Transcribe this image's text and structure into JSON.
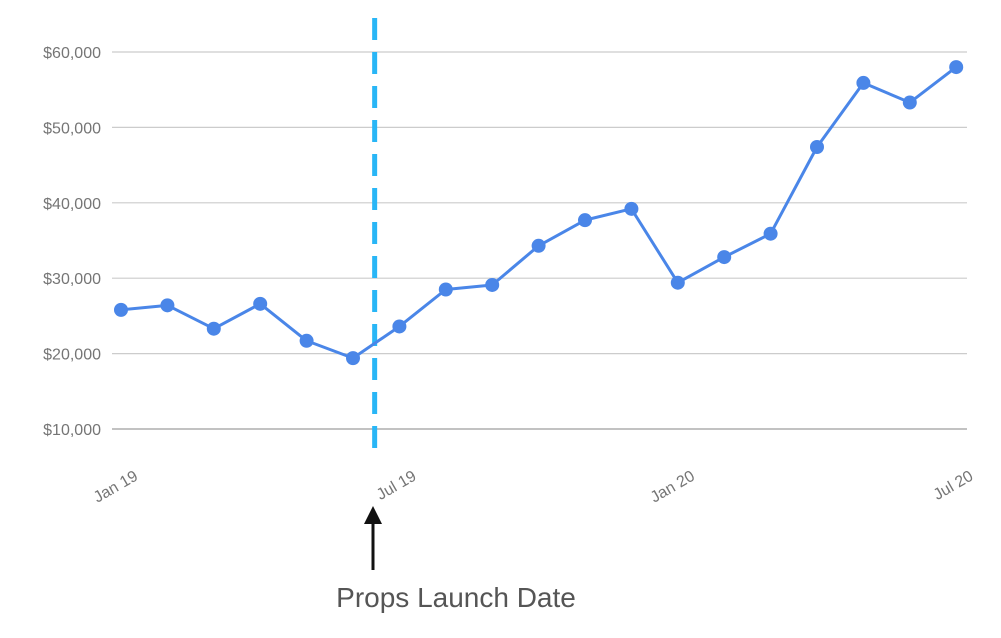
{
  "chart_data": {
    "type": "line",
    "title": "",
    "xlabel": "",
    "ylabel": "",
    "ylim": [
      10000,
      60000
    ],
    "y_ticks": [
      {
        "value": 10000,
        "label": "$10,000"
      },
      {
        "value": 20000,
        "label": "$20,000"
      },
      {
        "value": 30000,
        "label": "$30,000"
      },
      {
        "value": 40000,
        "label": "$40,000"
      },
      {
        "value": 50000,
        "label": "$50,000"
      },
      {
        "value": 60000,
        "label": "$60,000"
      }
    ],
    "x_ticks": [
      {
        "index": 0,
        "label": "Jan 19"
      },
      {
        "index": 6,
        "label": "Jul 19"
      },
      {
        "index": 12,
        "label": "Jan 20"
      },
      {
        "index": 18,
        "label": "Jul 20"
      }
    ],
    "grid": true,
    "series": [
      {
        "color": "#4a86e8",
        "points": [
          {
            "x": "2019-01",
            "y": 25800
          },
          {
            "x": "2019-02",
            "y": 26400
          },
          {
            "x": "2019-03",
            "y": 23300
          },
          {
            "x": "2019-04",
            "y": 26600
          },
          {
            "x": "2019-05",
            "y": 21700
          },
          {
            "x": "2019-06",
            "y": 19400
          },
          {
            "x": "2019-07",
            "y": 23600
          },
          {
            "x": "2019-08",
            "y": 28500
          },
          {
            "x": "2019-09",
            "y": 29100
          },
          {
            "x": "2019-10",
            "y": 34300
          },
          {
            "x": "2019-11",
            "y": 37700
          },
          {
            "x": "2019-12",
            "y": 39200
          },
          {
            "x": "2020-01",
            "y": 29400
          },
          {
            "x": "2020-02",
            "y": 32800
          },
          {
            "x": "2020-03",
            "y": 35900
          },
          {
            "x": "2020-04",
            "y": 47400
          },
          {
            "x": "2020-05",
            "y": 55900
          },
          {
            "x": "2020-06",
            "y": 53300
          },
          {
            "x": "2020-07",
            "y": 58000
          }
        ]
      }
    ],
    "annotations": [
      {
        "label": "Props Launch Date",
        "x": "2019-06-15",
        "color": "#29b6f6"
      }
    ]
  }
}
